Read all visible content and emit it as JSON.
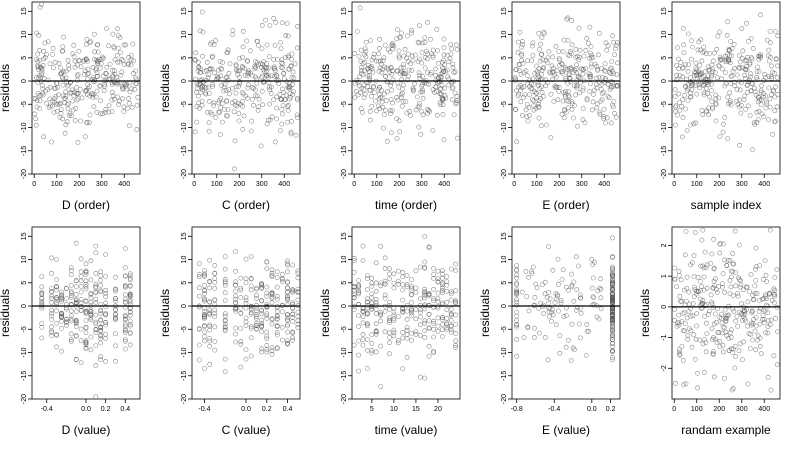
{
  "chart_data": [
    {
      "type": "scatter",
      "xlabel": "D (order)",
      "ylabel": "residuals",
      "xlim": [
        -10,
        470
      ],
      "ylim": [
        -20,
        17
      ],
      "xticks": [
        0,
        100,
        200,
        300,
        400
      ],
      "yticks": [
        -20,
        -15,
        -10,
        -5,
        0,
        5,
        10,
        15
      ],
      "hline": 0,
      "pattern": "uniform",
      "n": 320,
      "seed": 11
    },
    {
      "type": "scatter",
      "xlabel": "C (order)",
      "ylabel": "residuals",
      "xlim": [
        -10,
        470
      ],
      "ylim": [
        -20,
        17
      ],
      "xticks": [
        0,
        100,
        200,
        300,
        400
      ],
      "yticks": [
        -20,
        -15,
        -10,
        -5,
        0,
        5,
        10,
        15
      ],
      "hline": 0,
      "pattern": "uniform",
      "n": 320,
      "seed": 23
    },
    {
      "type": "scatter",
      "xlabel": "time (order)",
      "ylabel": "residuals",
      "xlim": [
        -10,
        470
      ],
      "ylim": [
        -20,
        17
      ],
      "xticks": [
        0,
        100,
        200,
        300,
        400
      ],
      "yticks": [
        -20,
        -15,
        -10,
        -5,
        0,
        5,
        10,
        15
      ],
      "hline": 0,
      "pattern": "uniform",
      "n": 320,
      "seed": 37
    },
    {
      "type": "scatter",
      "xlabel": "E (order)",
      "ylabel": "residuals",
      "xlim": [
        -10,
        470
      ],
      "ylim": [
        -20,
        17
      ],
      "xticks": [
        0,
        100,
        200,
        300,
        400
      ],
      "yticks": [
        -20,
        -15,
        -10,
        -5,
        0,
        5,
        10,
        15
      ],
      "hline": 0,
      "pattern": "uniform",
      "n": 320,
      "seed": 41
    },
    {
      "type": "scatter",
      "xlabel": "sample index",
      "ylabel": "residuals",
      "xlim": [
        -10,
        470
      ],
      "ylim": [
        -20,
        17
      ],
      "xticks": [
        0,
        100,
        200,
        300,
        400
      ],
      "yticks": [
        -20,
        -15,
        -10,
        -5,
        0,
        5,
        10,
        15
      ],
      "hline": 0,
      "pattern": "uniform",
      "n": 320,
      "seed": 53
    },
    {
      "type": "scatter",
      "xlabel": "D (value)",
      "ylabel": "residuals",
      "xlim": [
        -0.55,
        0.55
      ],
      "ylim": [
        -20,
        17
      ],
      "xticks": [
        -0.4,
        0.0,
        0.2,
        0.4
      ],
      "xtick_labels": [
        "-0.4",
        "0.0",
        "0.2",
        "0.4"
      ],
      "yticks": [
        -20,
        -15,
        -10,
        -5,
        0,
        5,
        10,
        15
      ],
      "hline": 0,
      "pattern": "columns",
      "columns": [
        -0.45,
        -0.35,
        -0.3,
        -0.25,
        -0.2,
        -0.15,
        -0.1,
        -0.05,
        0.0,
        0.05,
        0.1,
        0.15,
        0.2,
        0.3,
        0.4,
        0.45
      ],
      "n": 300,
      "seed": 61
    },
    {
      "type": "scatter",
      "xlabel": "C (value)",
      "ylabel": "residuals",
      "xlim": [
        -0.52,
        0.52
      ],
      "ylim": [
        -20,
        17
      ],
      "xticks": [
        -0.4,
        0.0,
        0.2,
        0.4
      ],
      "xtick_labels": [
        "-0.4",
        "0.0",
        "0.2",
        "0.4"
      ],
      "yticks": [
        -20,
        -15,
        -10,
        -5,
        0,
        5,
        10,
        15
      ],
      "hline": 0,
      "pattern": "columns",
      "columns": [
        -0.45,
        -0.4,
        -0.35,
        -0.3,
        -0.2,
        -0.1,
        -0.05,
        0.0,
        0.05,
        0.1,
        0.15,
        0.2,
        0.25,
        0.3,
        0.35,
        0.4,
        0.45,
        0.5
      ],
      "n": 300,
      "seed": 71
    },
    {
      "type": "scatter",
      "xlabel": "time (value)",
      "ylabel": "residuals",
      "xlim": [
        0.5,
        25
      ],
      "ylim": [
        -20,
        17
      ],
      "xticks": [
        5,
        10,
        15,
        20
      ],
      "yticks": [
        -20,
        -15,
        -10,
        -5,
        0,
        5,
        10,
        15
      ],
      "hline": 0,
      "pattern": "columns",
      "columns": [
        1,
        2,
        3,
        4,
        5,
        6,
        7,
        8,
        9,
        10,
        11,
        12,
        13,
        14,
        15,
        16,
        17,
        18,
        19,
        20,
        21,
        22,
        23,
        24
      ],
      "n": 300,
      "seed": 83
    },
    {
      "type": "scatter",
      "xlabel": "E (value)",
      "ylabel": "residuals",
      "xlim": [
        -0.85,
        0.3
      ],
      "ylim": [
        -20,
        17
      ],
      "xticks": [
        -0.8,
        -0.4,
        0.0,
        0.2
      ],
      "xtick_labels": [
        "-0.8",
        "-0.4",
        "0.0",
        "0.2"
      ],
      "yticks": [
        -20,
        -15,
        -10,
        -5,
        0,
        5,
        10,
        15
      ],
      "hline": 0,
      "pattern": "e_value",
      "n": 250,
      "seed": 97
    },
    {
      "type": "scatter",
      "xlabel": "randam example",
      "ylabel": "residuals",
      "xlim": [
        -10,
        470
      ],
      "ylim": [
        -3,
        2.6
      ],
      "xticks": [
        0,
        100,
        200,
        300,
        400
      ],
      "yticks": [
        -2,
        -1,
        0,
        1,
        2
      ],
      "hline": 0,
      "pattern": "normal",
      "n": 320,
      "seed": 101
    }
  ]
}
